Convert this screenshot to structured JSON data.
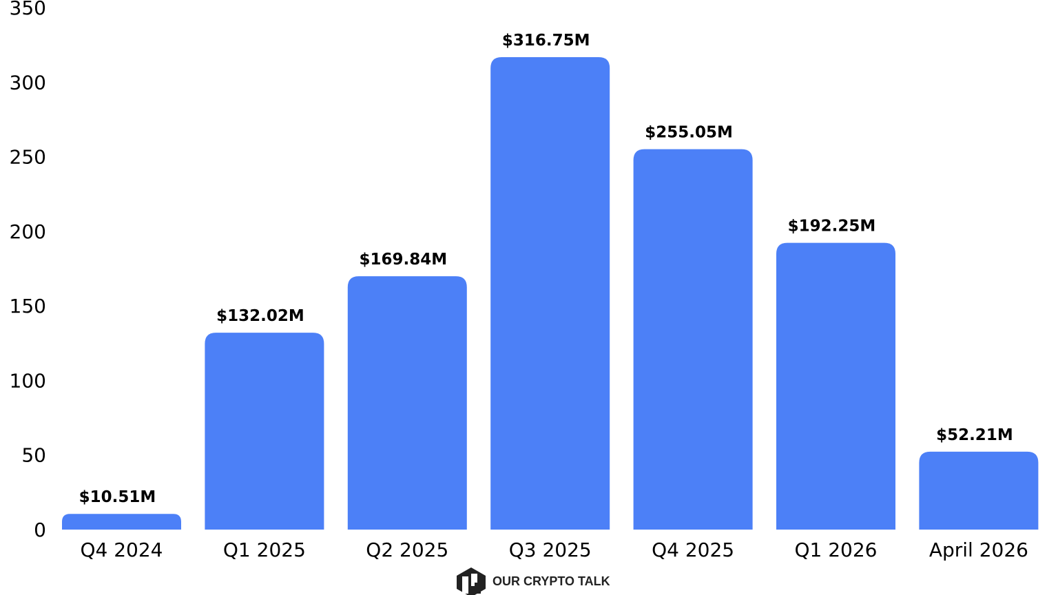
{
  "chart_data": {
    "type": "bar",
    "categories": [
      "Q4 2024",
      "Q1 2025",
      "Q2 2025",
      "Q3 2025",
      "Q4 2025",
      "Q1 2026",
      "April 2026"
    ],
    "values": [
      10.51,
      132.02,
      169.84,
      316.75,
      255.05,
      192.25,
      52.21
    ],
    "data_labels": [
      "$10.51M",
      "$132.02M",
      "$169.84M",
      "$316.75M",
      "$255.05M",
      "$192.25M",
      "$52.21M"
    ],
    "ylim": [
      0,
      350
    ],
    "yticks": [
      0,
      50,
      100,
      150,
      200,
      250,
      300,
      350
    ],
    "ytick_labels": [
      "0",
      "50",
      "100",
      "150",
      "200",
      "250",
      "300",
      "350"
    ],
    "grid": false,
    "legend": "none",
    "bar_color": "#4C80F7",
    "title": "",
    "xlabel": "",
    "ylabel": ""
  },
  "brand": {
    "name": "OUR CRYPTO TALK",
    "icon": "our-crypto-talk-logo-icon",
    "color": "#222222"
  }
}
